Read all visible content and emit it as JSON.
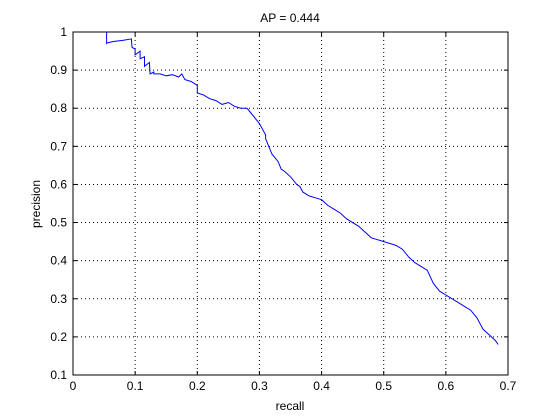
{
  "chart_data": {
    "type": "line",
    "title": "AP = 0.444",
    "xlabel": "recall",
    "ylabel": "precision",
    "xlim": [
      0,
      0.7
    ],
    "ylim": [
      0.1,
      1
    ],
    "xticks": [
      "0",
      "0.1",
      "0.2",
      "0.3",
      "0.4",
      "0.5",
      "0.6",
      "0.7"
    ],
    "yticks": [
      "0.1",
      "0.2",
      "0.3",
      "0.4",
      "0.5",
      "0.6",
      "0.7",
      "0.8",
      "0.9",
      "1"
    ],
    "grid": true,
    "grid_style": "dotted",
    "line_color": "#0000ff",
    "series": [
      {
        "x": [
          0.054,
          0.054,
          0.056,
          0.065,
          0.08,
          0.094,
          0.095,
          0.1,
          0.1,
          0.108,
          0.108,
          0.115,
          0.115,
          0.123,
          0.124,
          0.13,
          0.13,
          0.14,
          0.15,
          0.16,
          0.17,
          0.175,
          0.18,
          0.19,
          0.2,
          0.2,
          0.21,
          0.22,
          0.23,
          0.24,
          0.25,
          0.26,
          0.27,
          0.28,
          0.285,
          0.29,
          0.3,
          0.31,
          0.31,
          0.32,
          0.325,
          0.33,
          0.335,
          0.34,
          0.35,
          0.36,
          0.365,
          0.37,
          0.38,
          0.39,
          0.4,
          0.41,
          0.42,
          0.43,
          0.44,
          0.45,
          0.46,
          0.47,
          0.48,
          0.49,
          0.5,
          0.51,
          0.52,
          0.53,
          0.54,
          0.55,
          0.56,
          0.57,
          0.58,
          0.59,
          0.6,
          0.61,
          0.62,
          0.63,
          0.64,
          0.65,
          0.66,
          0.67,
          0.68,
          0.684
        ],
        "y": [
          1,
          0.97,
          0.972,
          0.975,
          0.978,
          0.982,
          0.96,
          0.955,
          0.94,
          0.95,
          0.93,
          0.935,
          0.91,
          0.92,
          0.89,
          0.895,
          0.89,
          0.89,
          0.885,
          0.888,
          0.882,
          0.89,
          0.875,
          0.87,
          0.86,
          0.84,
          0.835,
          0.825,
          0.82,
          0.81,
          0.815,
          0.805,
          0.8,
          0.8,
          0.79,
          0.78,
          0.76,
          0.73,
          0.72,
          0.68,
          0.67,
          0.66,
          0.64,
          0.635,
          0.62,
          0.6,
          0.595,
          0.58,
          0.57,
          0.565,
          0.56,
          0.545,
          0.535,
          0.525,
          0.51,
          0.5,
          0.49,
          0.475,
          0.46,
          0.455,
          0.45,
          0.445,
          0.44,
          0.43,
          0.41,
          0.395,
          0.385,
          0.375,
          0.34,
          0.32,
          0.31,
          0.3,
          0.29,
          0.28,
          0.27,
          0.25,
          0.22,
          0.205,
          0.19,
          0.18
        ]
      }
    ]
  }
}
